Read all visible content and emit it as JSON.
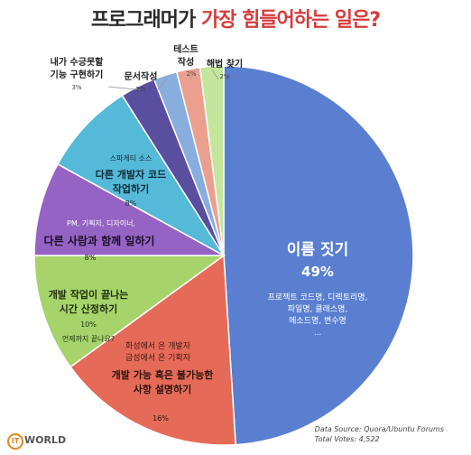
{
  "title": {
    "part1": "프로그래머가",
    "part2": "가장 힘들어하는 일은?"
  },
  "chart_data": {
    "type": "pie",
    "slices": [
      {
        "label": "이름 짓기",
        "value": 49,
        "pct": "49%",
        "sub": [
          "프로젝트 코드명, 디렉토리명,",
          "파일명, 클래스명,",
          "메소드명, 변수명",
          "..."
        ],
        "color": "#5a7fd0"
      },
      {
        "label": "개발 가능 혹은 불가능한 사항 설명하기",
        "value": 16,
        "pct": "16%",
        "sub": [
          "화성에서 온 개발자",
          "금성에서 온 기획자"
        ],
        "color": "#e66a58"
      },
      {
        "label": "개발 작업이 끝나는 시간 산정하기",
        "value": 10,
        "pct": "10%",
        "sub": [
          "언제까지 끝나요?"
        ],
        "color": "#a6d46a"
      },
      {
        "label": "다른 사람과 함께 일하기",
        "value": 8,
        "pct": "8%",
        "sub": [
          "PM, 기획자, 디자이너,"
        ],
        "color": "#9563c4"
      },
      {
        "label": "다른 개발자 코드 작업하기",
        "value": 8,
        "pct": "8%",
        "sub": [
          "스파게티 소스"
        ],
        "color": "#55b9d8"
      },
      {
        "label": "내가 수긍못할 기능 구현하기",
        "value": 3,
        "pct": "3%",
        "sub": [],
        "color": "#5a4e9e"
      },
      {
        "label": "문서작성",
        "value": 2,
        "pct": "2%",
        "sub": [],
        "color": "#88aede"
      },
      {
        "label": "테스트 작성",
        "value": 2,
        "pct": "2%",
        "sub": [],
        "color": "#ec9f8e"
      },
      {
        "label": "해법 찾기",
        "value": 2,
        "pct": "2%",
        "sub": [],
        "color": "#c3e69c"
      }
    ]
  },
  "source": {
    "line1": "Data Source: Quora/Ubuntu Forums",
    "line2": "Total Votes: 4,522"
  },
  "logo": {
    "mark": "IT",
    "text": "WORLD"
  }
}
